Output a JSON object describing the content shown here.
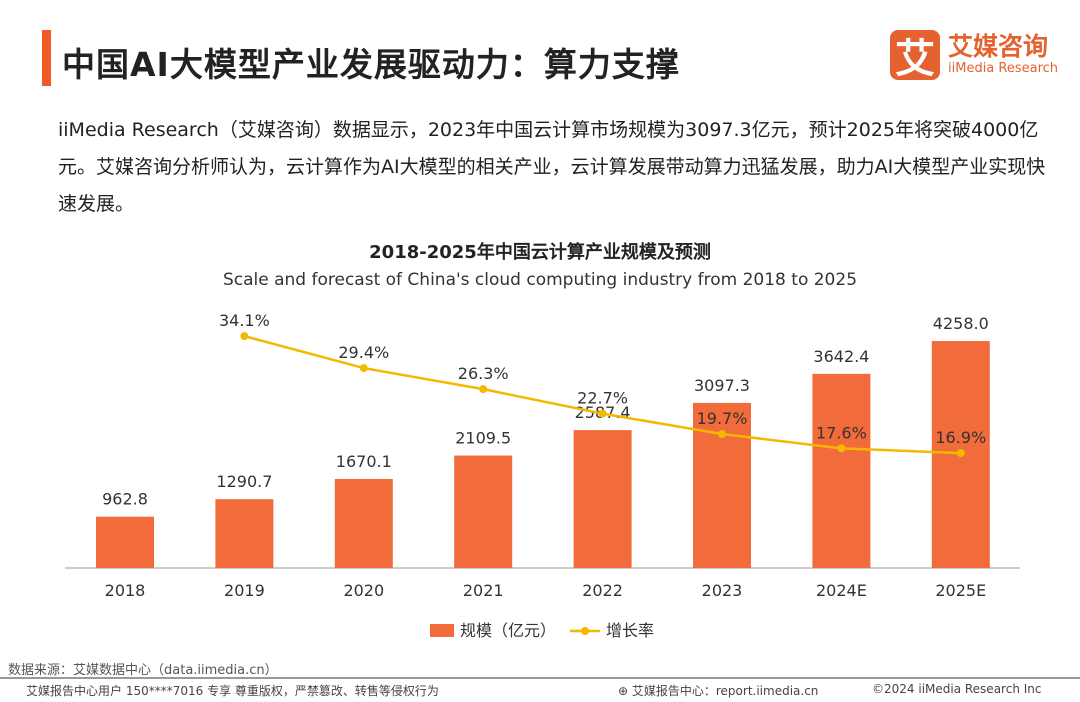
{
  "header": {
    "title": "中国AI大模型产业发展驱动力：算力支撑",
    "logo_cn": "艾媒咨询",
    "logo_en": "iiMedia Research",
    "logo_mark": "艾"
  },
  "paragraph": "iiMedia Research（艾媒咨询）数据显示，2023年中国云计算市场规模为3097.3亿元，预计2025年将突破4000亿元。艾媒咨询分析师认为，云计算作为AI大模型的相关产业，云计算发展带动算力迅猛发展，助力AI大模型产业实现快速发展。",
  "chart_data": {
    "type": "bar+line",
    "title": "2018-2025年中国云计算产业规模及预测",
    "subtitle": "Scale and forecast of China's cloud computing industry from 2018 to 2025",
    "categories": [
      "2018",
      "2019",
      "2020",
      "2021",
      "2022",
      "2023",
      "2024E",
      "2025E"
    ],
    "series": [
      {
        "name": "规模（亿元）",
        "type": "bar",
        "color": "#f26b3a",
        "values": [
          962.8,
          1290.7,
          1670.1,
          2109.5,
          2587.4,
          3097.3,
          3642.4,
          4258.0
        ],
        "labels": [
          "962.8",
          "1290.7",
          "1670.1",
          "2109.5",
          "2587.4",
          "3097.3",
          "3642.4",
          "4258.0"
        ]
      },
      {
        "name": "增长率",
        "type": "line",
        "color": "#f5b800",
        "values": [
          null,
          34.1,
          29.4,
          26.3,
          22.7,
          19.7,
          17.6,
          16.9
        ],
        "labels": [
          "",
          "34.1%",
          "29.4%",
          "26.3%",
          "22.7%",
          "19.7%",
          "17.6%",
          "16.9%"
        ]
      }
    ],
    "legend": "bottom"
  },
  "footer": {
    "source": "数据来源：艾媒数据中心（data.iimedia.cn）",
    "user": "艾媒报告中心用户 150****7016 专享 尊重版权，严禁篡改、转售等侵权行为",
    "report": "艾媒报告中心：report.iimedia.cn",
    "copyright": "©2024  iiMedia Research  Inc"
  }
}
